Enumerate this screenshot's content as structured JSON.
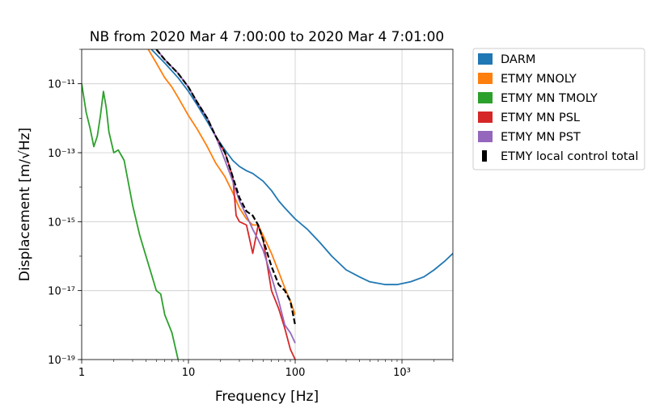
{
  "chart_data": {
    "type": "line",
    "title": "NB from 2020 Mar 4 7:00:00 to 2020 Mar 4 7:01:00",
    "xlabel": "Frequency [Hz]",
    "ylabel": "Displacement [m/√Hz]",
    "x_scale": "log",
    "y_scale": "log",
    "xlim": [
      1,
      3000
    ],
    "ylim": [
      1e-19,
      1e-10
    ],
    "grid": true,
    "legend_position": "outside-right",
    "x_ticks": [
      {
        "value": 1,
        "label": "1"
      },
      {
        "value": 10,
        "label": "10"
      },
      {
        "value": 100,
        "label": "100"
      },
      {
        "value": 1000,
        "label": "10³"
      }
    ],
    "y_ticks": [
      {
        "value": 1e-11,
        "label": "10⁻¹¹"
      },
      {
        "value": 1e-13,
        "label": "10⁻¹³"
      },
      {
        "value": 1e-15,
        "label": "10⁻¹⁵"
      },
      {
        "value": 1e-17,
        "label": "10⁻¹⁷"
      },
      {
        "value": 1e-19,
        "label": "10⁻¹⁹"
      }
    ],
    "series": [
      {
        "name": "DARM",
        "color": "#1f77b4",
        "style": "solid",
        "x": [
          4.5,
          6,
          8,
          10,
          12,
          15,
          18,
          22,
          26,
          30,
          35,
          40,
          50,
          60,
          70,
          80,
          100,
          130,
          170,
          220,
          300,
          400,
          500,
          700,
          900,
          1200,
          1600,
          2000,
          2500,
          3000
        ],
        "y": [
          1e-10,
          4e-11,
          1.5e-11,
          6e-12,
          2.5e-12,
          8e-13,
          3e-13,
          1.2e-13,
          6e-14,
          4e-14,
          3e-14,
          2.5e-14,
          1.5e-14,
          8e-15,
          4e-15,
          2.5e-15,
          1.2e-15,
          6e-16,
          2.5e-16,
          1e-16,
          4e-17,
          2.5e-17,
          1.8e-17,
          1.5e-17,
          1.5e-17,
          1.8e-17,
          2.5e-17,
          4e-17,
          7e-17,
          1.2e-16
        ]
      },
      {
        "name": "ETMY MNOLY",
        "color": "#ff7f0e",
        "style": "solid",
        "x": [
          4.2,
          5,
          6,
          7,
          8,
          10,
          12,
          15,
          18,
          22,
          26,
          30,
          35,
          40,
          45,
          50,
          60,
          70,
          80,
          90,
          100
        ],
        "y": [
          1e-10,
          4e-11,
          1.5e-11,
          8e-12,
          4e-12,
          1.2e-12,
          5e-13,
          1.5e-13,
          5e-14,
          2e-14,
          7e-15,
          2.5e-15,
          1.2e-15,
          8e-16,
          8e-16,
          4e-16,
          1.2e-16,
          3.5e-17,
          1.2e-17,
          5e-18,
          2e-18
        ]
      },
      {
        "name": "ETMY MN TMOLY",
        "color": "#2ca02c",
        "style": "solid",
        "x": [
          1,
          1.1,
          1.2,
          1.3,
          1.4,
          1.5,
          1.6,
          1.7,
          1.8,
          2.0,
          2.2,
          2.5,
          3.0,
          3.5,
          4.0,
          4.5,
          5.0,
          5.5,
          6.0,
          7.0,
          8.0
        ],
        "y": [
          1e-11,
          1.5e-12,
          5e-13,
          1.5e-13,
          3e-13,
          1.2e-12,
          6e-12,
          2e-12,
          4e-13,
          1e-13,
          1.2e-13,
          6e-14,
          3e-15,
          4e-16,
          1e-16,
          3e-17,
          1e-17,
          8e-18,
          2e-18,
          6e-19,
          1e-19
        ]
      },
      {
        "name": "ETMY MN PSL",
        "color": "#d62728",
        "style": "solid",
        "x": [
          5,
          6,
          8,
          10,
          12,
          15,
          18,
          22,
          26,
          28,
          30,
          35,
          40,
          45,
          50,
          60,
          70,
          80,
          90,
          100
        ],
        "y": [
          1e-10,
          5e-11,
          2e-11,
          8e-12,
          3e-12,
          1e-12,
          3e-13,
          1e-13,
          2e-14,
          1.5e-15,
          1e-15,
          8e-16,
          1.2e-16,
          8e-16,
          3e-16,
          1e-17,
          3e-18,
          8e-19,
          2e-19,
          1e-19
        ]
      },
      {
        "name": "ETMY MN PST",
        "color": "#9467bd",
        "style": "solid",
        "x": [
          5,
          6,
          8,
          10,
          12,
          15,
          18,
          22,
          26,
          30,
          35,
          40,
          45,
          50,
          60,
          70,
          80,
          90,
          100
        ],
        "y": [
          1e-10,
          5e-11,
          2e-11,
          8e-12,
          3e-12,
          1e-12,
          3e-13,
          6e-14,
          1.5e-14,
          4e-15,
          1.5e-15,
          6e-16,
          3e-16,
          1.5e-16,
          2.5e-17,
          5e-18,
          1e-18,
          6e-19,
          3e-19
        ]
      },
      {
        "name": "ETMY local control total",
        "color": "#000000",
        "style": "dashed",
        "x": [
          5,
          6,
          8,
          10,
          12,
          15,
          18,
          22,
          26,
          30,
          35,
          40,
          45,
          50,
          60,
          70,
          80,
          90,
          100
        ],
        "y": [
          1e-10,
          5e-11,
          2e-11,
          8e-12,
          3e-12,
          1e-12,
          3e-13,
          1e-13,
          2e-14,
          5e-15,
          2e-15,
          1.5e-15,
          8e-16,
          3e-16,
          5e-17,
          1.5e-17,
          1e-17,
          5e-18,
          1e-18
        ]
      }
    ]
  }
}
